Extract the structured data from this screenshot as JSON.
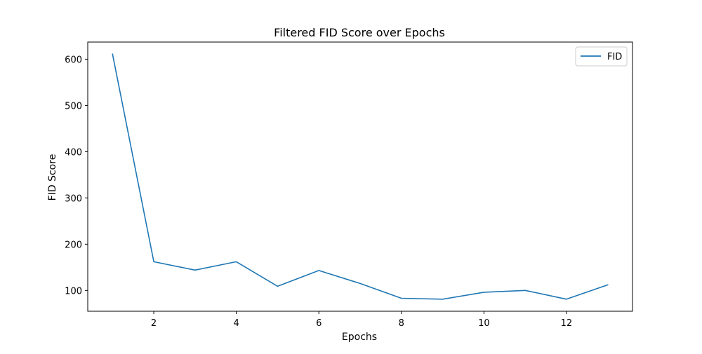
{
  "chart_data": {
    "type": "line",
    "title": "Filtered FID Score over Epochs",
    "xlabel": "Epochs",
    "ylabel": "FID Score",
    "x": [
      1,
      2,
      3,
      4,
      5,
      6,
      7,
      8,
      9,
      10,
      11,
      12,
      13
    ],
    "series": [
      {
        "name": "FID",
        "color": "#1f77b4",
        "values": [
          611,
          162,
          144,
          162,
          109,
          143,
          115,
          83,
          81,
          96,
          100,
          81,
          112
        ]
      }
    ],
    "xlim": [
      0.4,
      13.6
    ],
    "ylim": [
      55,
      637
    ],
    "xticks": [
      2,
      4,
      6,
      8,
      10,
      12
    ],
    "yticks": [
      100,
      200,
      300,
      400,
      500,
      600
    ],
    "grid": false,
    "legend_position": "top-right"
  }
}
